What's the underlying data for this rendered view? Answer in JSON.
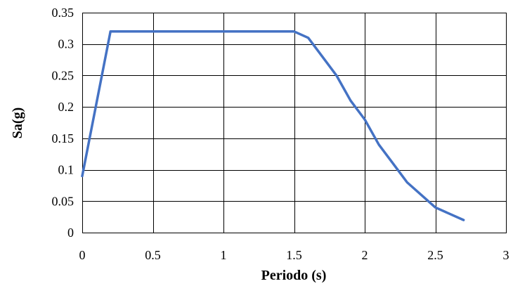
{
  "chart_data": {
    "type": "line",
    "title": "",
    "xlabel": "Periodo (s)",
    "ylabel": "Sa(g)",
    "xlim": [
      0,
      3
    ],
    "ylim": [
      0,
      0.35
    ],
    "x_ticks": [
      "0",
      "0.5",
      "1",
      "1.5",
      "2",
      "2.5",
      "3"
    ],
    "y_ticks": [
      "0",
      "0.05",
      "0.1",
      "0.15",
      "0.2",
      "0.25",
      "0.3",
      "0.35"
    ],
    "grid": true,
    "legend": "none",
    "series": [
      {
        "color": "#4472C4",
        "x": [
          0,
          0.2,
          1.5,
          1.6,
          1.7,
          1.8,
          1.9,
          2.0,
          2.1,
          2.2,
          2.3,
          2.4,
          2.5,
          2.6,
          2.7
        ],
        "y": [
          0.09,
          0.32,
          0.32,
          0.31,
          0.28,
          0.25,
          0.21,
          0.18,
          0.14,
          0.11,
          0.08,
          0.06,
          0.04,
          0.03,
          0.02
        ]
      }
    ]
  }
}
